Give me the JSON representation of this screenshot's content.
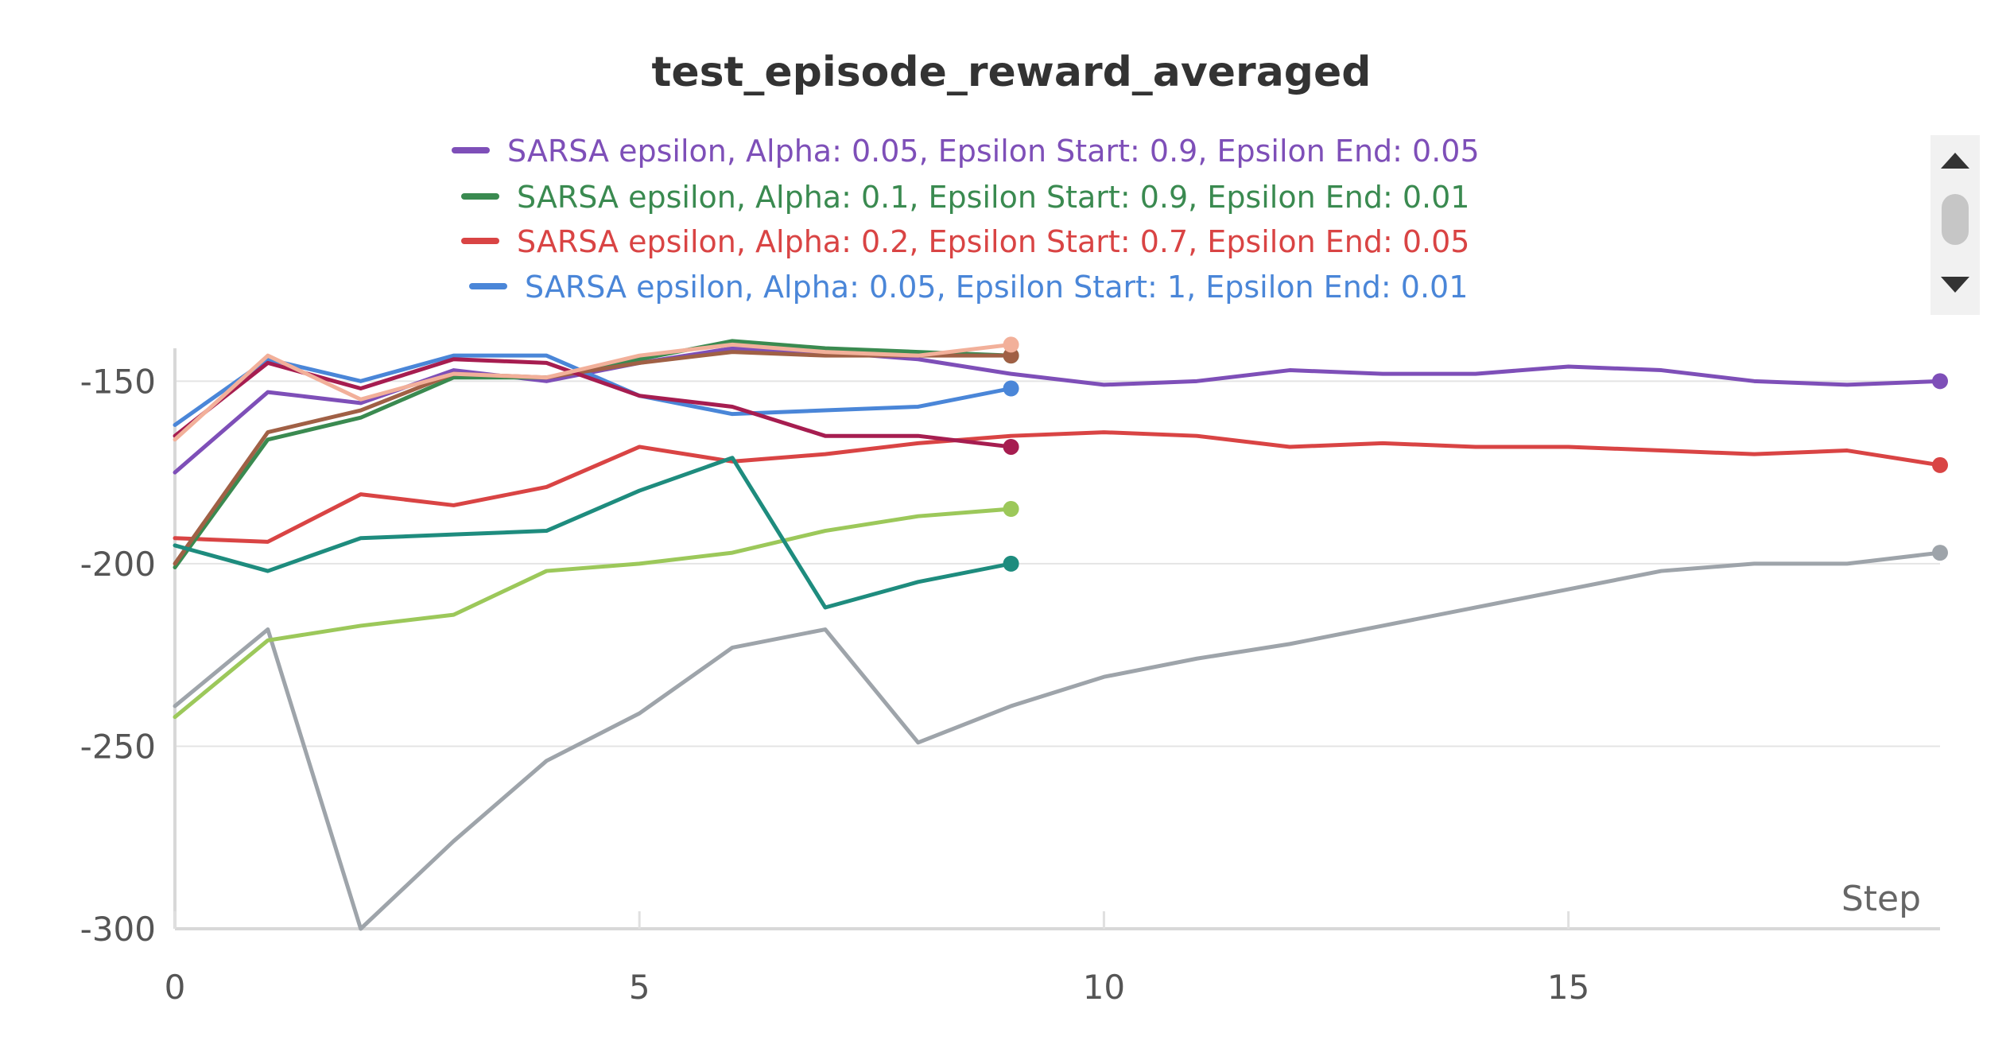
{
  "chart_data": {
    "type": "line",
    "title": "test_episode_reward_averaged",
    "xlabel": "Step",
    "ylabel": "",
    "xlim": [
      0,
      19
    ],
    "ylim": [
      -300,
      -141
    ],
    "x_ticks": [
      0,
      5,
      10,
      15
    ],
    "y_ticks": [
      -150,
      -200,
      -250,
      -300
    ],
    "legend_position": "top",
    "legend": [
      {
        "label": "SARSA epsilon, Alpha: 0.05, Epsilon Start: 0.9, Epsilon End: 0.05",
        "color": "#7e4fb8"
      },
      {
        "label": "SARSA epsilon, Alpha: 0.1, Epsilon Start: 0.9, Epsilon End: 0.01",
        "color": "#3a8a50"
      },
      {
        "label": "SARSA epsilon, Alpha: 0.2, Epsilon Start: 0.7, Epsilon End: 0.05",
        "color": "#d94444"
      },
      {
        "label": "SARSA epsilon, Alpha: 0.05, Epsilon Start: 1, Epsilon End: 0.01",
        "color": "#4a86d8"
      }
    ],
    "series": [
      {
        "name": "purple",
        "color": "#7e4fb8",
        "x": [
          0,
          1,
          2,
          3,
          4,
          5,
          6,
          7,
          8,
          9,
          10,
          11,
          12,
          13,
          14,
          15,
          16,
          17,
          18,
          19
        ],
        "values": [
          -175,
          -153,
          -156,
          -147,
          -150,
          -145,
          -141,
          -142,
          -144,
          -148,
          -151,
          -150,
          -147,
          -148,
          -148,
          -146,
          -147,
          -150,
          -151,
          -150
        ]
      },
      {
        "name": "red",
        "color": "#d94444",
        "x": [
          0,
          1,
          2,
          3,
          4,
          5,
          6,
          7,
          8,
          9,
          10,
          11,
          12,
          13,
          14,
          15,
          16,
          17,
          18,
          19
        ],
        "values": [
          -193,
          -194,
          -181,
          -184,
          -179,
          -168,
          -172,
          -170,
          -167,
          -165,
          -164,
          -165,
          -168,
          -167,
          -168,
          -168,
          -169,
          -170,
          -169,
          -173
        ]
      },
      {
        "name": "gray",
        "color": "#9ea4aa",
        "x": [
          0,
          1,
          2,
          3,
          4,
          5,
          6,
          7,
          8,
          9,
          10,
          11,
          12,
          13,
          14,
          15,
          16,
          17,
          18,
          19
        ],
        "values": [
          -239,
          -218,
          -300,
          -276,
          -254,
          -241,
          -223,
          -218,
          -249,
          -239,
          -231,
          -226,
          -222,
          -217,
          -212,
          -207,
          -202,
          -200,
          -200,
          -197
        ]
      },
      {
        "name": "blue",
        "color": "#4a86d8",
        "x": [
          0,
          1,
          2,
          3,
          4,
          5,
          6,
          7,
          8,
          9
        ],
        "values": [
          -162,
          -144,
          -150,
          -143,
          -143,
          -154,
          -159,
          -158,
          -157,
          -152
        ]
      },
      {
        "name": "green",
        "color": "#3a8a50",
        "x": [
          0,
          1,
          2,
          3,
          4,
          5,
          6,
          7,
          8,
          9
        ],
        "values": [
          -201,
          -166,
          -160,
          -149,
          -149,
          -144,
          -139,
          -141,
          -142,
          -143
        ]
      },
      {
        "name": "brown",
        "color": "#a06045",
        "x": [
          0,
          1,
          2,
          3,
          4,
          5,
          6,
          7,
          8,
          9
        ],
        "values": [
          -200,
          -164,
          -158,
          -148,
          -149,
          -145,
          -142,
          -143,
          -143,
          -143
        ]
      },
      {
        "name": "maroon",
        "color": "#a61d50",
        "x": [
          0,
          1,
          2,
          3,
          4,
          5,
          6,
          7,
          8,
          9
        ],
        "values": [
          -165,
          -145,
          -152,
          -144,
          -145,
          -154,
          -157,
          -165,
          -165,
          -168
        ]
      },
      {
        "name": "peach",
        "color": "#f2b09a",
        "x": [
          0,
          1,
          2,
          3,
          4,
          5,
          6,
          7,
          8,
          9
        ],
        "values": [
          -166,
          -143,
          -155,
          -148,
          -149,
          -143,
          -140,
          -142,
          -143,
          -140
        ]
      },
      {
        "name": "lime",
        "color": "#9cc85a",
        "x": [
          0,
          1,
          2,
          3,
          4,
          5,
          6,
          7,
          8,
          9
        ],
        "values": [
          -242,
          -221,
          -217,
          -214,
          -202,
          -200,
          -197,
          -191,
          -187,
          -185
        ]
      },
      {
        "name": "teal",
        "color": "#1e8c7e",
        "x": [
          0,
          1,
          2,
          3,
          4,
          5,
          6,
          7,
          8,
          9
        ],
        "values": [
          -195,
          -202,
          -193,
          -192,
          -191,
          -180,
          -171,
          -212,
          -205,
          -200
        ]
      }
    ]
  }
}
